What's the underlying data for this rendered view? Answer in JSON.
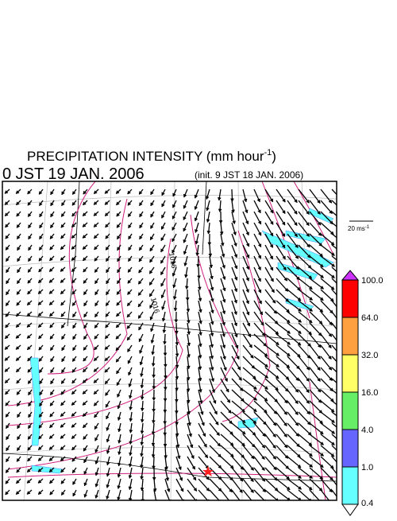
{
  "header": {
    "title": "PRECIPITATION INTENSITY (mm hour",
    "title_sup": "-1",
    "title_end": ")",
    "valid_time": "0 JST 19 JAN. 2006",
    "init_time": "(init. 9 JST 18 JAN. 2006)"
  },
  "wind_scale": {
    "label": "20 ms",
    "label_sup": "-1"
  },
  "map": {
    "contour_labels": [
      "1016",
      "1016"
    ]
  },
  "legend": {
    "levels": [
      "100.0",
      "64.0",
      "32.0",
      "16.0",
      "4.0",
      "1.0",
      "0.4"
    ],
    "colors": [
      "#ff0000",
      "#ffa040",
      "#ffff66",
      "#66ee66",
      "#6666ff",
      "#66ffff"
    ],
    "over_color": "#cc33ff",
    "under_color": "#ffffff"
  }
}
